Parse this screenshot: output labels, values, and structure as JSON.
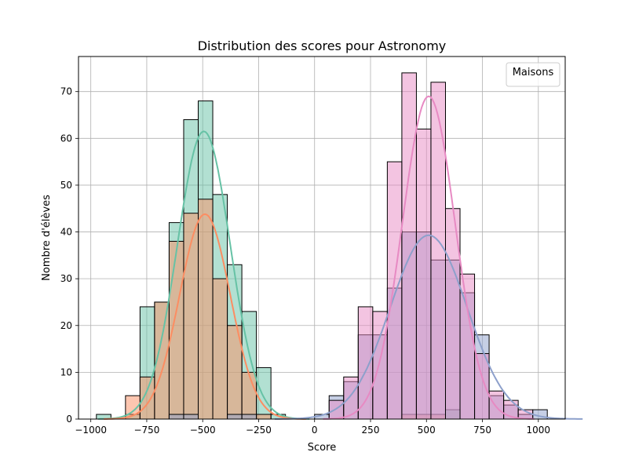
{
  "chart_data": {
    "type": "histogram",
    "title": "Distribution des scores pour Astronomy",
    "xlabel": "Score",
    "ylabel": "Nombre d'élèves",
    "xlim": [
      -1055,
      1120
    ],
    "ylim": [
      0,
      77.5
    ],
    "xticks": [
      -1000,
      -750,
      -500,
      -250,
      0,
      250,
      500,
      750,
      1000
    ],
    "xtick_labels": [
      "−1000",
      "−750",
      "−500",
      "−250",
      "0",
      "250",
      "500",
      "750",
      "1000"
    ],
    "yticks": [
      0,
      10,
      20,
      30,
      40,
      50,
      60,
      70
    ],
    "ytick_labels": [
      "0",
      "10",
      "20",
      "30",
      "40",
      "50",
      "60",
      "70"
    ],
    "grid": true,
    "legend": {
      "title": "Maisons",
      "position": "top-right"
    },
    "series_colors": {
      "green": "#66c2a5",
      "orange": "#fc8d62",
      "blue": "#8da0cb",
      "pink": "#e78ac3"
    },
    "bins": {
      "left_edges": [
        -975,
        -910,
        -845,
        -780,
        -715,
        -650,
        -585,
        -520,
        -455,
        -390,
        -325,
        -260,
        -195,
        -130,
        -65,
        0,
        65,
        130,
        195,
        260,
        325,
        390,
        455,
        520,
        585,
        650,
        715,
        780,
        845,
        910,
        975
      ],
      "width": 65
    },
    "series": [
      {
        "color_key": "green",
        "counts": [
          1,
          0,
          1,
          24,
          25,
          42,
          64,
          68,
          48,
          33,
          23,
          11,
          1,
          0,
          0,
          0,
          0,
          0,
          0,
          0,
          0,
          0,
          0,
          0,
          2,
          0,
          0,
          0,
          0,
          0,
          0
        ],
        "kde_peak_x": -495,
        "kde_peak_y": 61.5,
        "kde_sigma": 118
      },
      {
        "color_key": "orange",
        "counts": [
          0,
          0,
          5,
          9,
          25,
          38,
          44,
          47,
          30,
          20,
          10,
          1,
          0,
          0,
          0,
          0,
          0,
          0,
          0,
          0,
          0,
          1,
          1,
          1,
          0,
          0,
          0,
          0,
          0,
          0,
          0
        ],
        "kde_peak_x": -490,
        "kde_peak_y": 43.8,
        "kde_sigma": 113
      },
      {
        "color_key": "blue",
        "counts": [
          0,
          0,
          0,
          0,
          0,
          1,
          1,
          0,
          0,
          1,
          1,
          0,
          0,
          0,
          0,
          1,
          5,
          8,
          18,
          18,
          28,
          40,
          40,
          34,
          34,
          27,
          18,
          5,
          3,
          1,
          2
        ],
        "kde_peak_x": 510,
        "kde_peak_y": 39.3,
        "kde_sigma": 172
      },
      {
        "color_key": "pink",
        "counts": [
          0,
          0,
          0,
          0,
          0,
          0,
          0,
          0,
          0,
          0,
          0,
          0,
          0,
          0,
          0,
          0,
          4,
          9,
          24,
          23,
          55,
          74,
          62,
          72,
          45,
          31,
          14,
          6,
          4,
          2,
          0
        ],
        "kde_peak_x": 510,
        "kde_peak_y": 69.0,
        "kde_sigma": 118
      }
    ]
  }
}
